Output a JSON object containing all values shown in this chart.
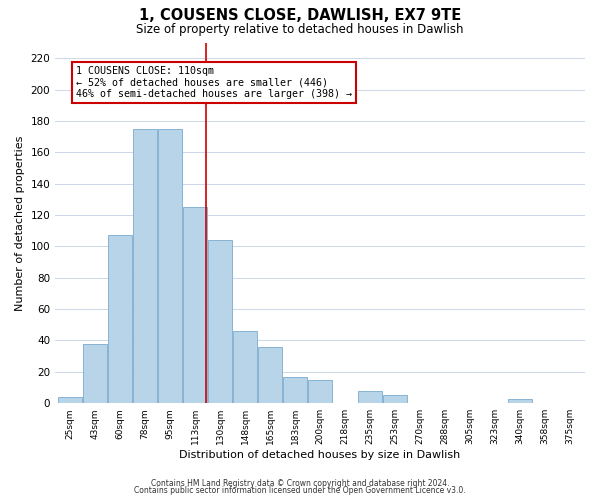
{
  "title": "1, COUSENS CLOSE, DAWLISH, EX7 9TE",
  "subtitle": "Size of property relative to detached houses in Dawlish",
  "xlabel": "Distribution of detached houses by size in Dawlish",
  "ylabel": "Number of detached properties",
  "bar_color": "#b8d4e8",
  "bar_edge_color": "#7aaacf",
  "categories": [
    "25sqm",
    "43sqm",
    "60sqm",
    "78sqm",
    "95sqm",
    "113sqm",
    "130sqm",
    "148sqm",
    "165sqm",
    "183sqm",
    "200sqm",
    "218sqm",
    "235sqm",
    "253sqm",
    "270sqm",
    "288sqm",
    "305sqm",
    "323sqm",
    "340sqm",
    "358sqm",
    "375sqm"
  ],
  "values": [
    4,
    38,
    107,
    175,
    175,
    125,
    104,
    46,
    36,
    17,
    15,
    0,
    8,
    5,
    0,
    0,
    0,
    0,
    3,
    0,
    0
  ],
  "ylim": [
    0,
    230
  ],
  "yticks": [
    0,
    20,
    40,
    60,
    80,
    100,
    120,
    140,
    160,
    180,
    200,
    220
  ],
  "vline_color": "#cc0000",
  "annotation_title": "1 COUSENS CLOSE: 110sqm",
  "annotation_line1": "← 52% of detached houses are smaller (446)",
  "annotation_line2": "46% of semi-detached houses are larger (398) →",
  "annotation_box_color": "#ffffff",
  "annotation_box_edge": "#cc0000",
  "footer1": "Contains HM Land Registry data © Crown copyright and database right 2024.",
  "footer2": "Contains public sector information licensed under the Open Government Licence v3.0.",
  "background_color": "#ffffff",
  "grid_color": "#ccd8e8"
}
